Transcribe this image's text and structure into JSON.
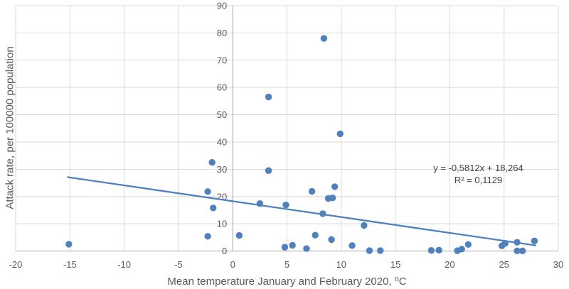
{
  "chart_data": {
    "type": "scatter",
    "title": "",
    "xlabel": "Mean temperature January and February 2020, ⁰C",
    "ylabel": "Attack rate, per 100000 population",
    "xlim": [
      -20,
      30
    ],
    "ylim": [
      0,
      90
    ],
    "x_ticks": [
      -20,
      -15,
      -10,
      -5,
      0,
      5,
      10,
      15,
      20,
      25,
      30
    ],
    "y_ticks": [
      0,
      10,
      20,
      30,
      40,
      50,
      60,
      70,
      80,
      90
    ],
    "grid": true,
    "legend": "none",
    "points": [
      [
        -15.1,
        2.5
      ],
      [
        -2.3,
        21.8
      ],
      [
        -2.3,
        5.4
      ],
      [
        -1.9,
        32.5
      ],
      [
        -1.8,
        15.8
      ],
      [
        0.6,
        5.7
      ],
      [
        2.5,
        17.4
      ],
      [
        3.3,
        56.5
      ],
      [
        3.3,
        29.5
      ],
      [
        4.9,
        16.9
      ],
      [
        4.8,
        1.4
      ],
      [
        5.5,
        2.1
      ],
      [
        6.8,
        0.9
      ],
      [
        7.3,
        21.9
      ],
      [
        7.6,
        5.8
      ],
      [
        8.3,
        13.7
      ],
      [
        8.4,
        78.0
      ],
      [
        8.8,
        19.3
      ],
      [
        9.2,
        19.5
      ],
      [
        9.4,
        23.6
      ],
      [
        9.1,
        4.2
      ],
      [
        9.9,
        43.0
      ],
      [
        11.0,
        2.0
      ],
      [
        12.1,
        9.4
      ],
      [
        12.6,
        0.15
      ],
      [
        13.6,
        0.15
      ],
      [
        18.3,
        0.2
      ],
      [
        19.0,
        0.3
      ],
      [
        20.7,
        0.1
      ],
      [
        21.1,
        0.7
      ],
      [
        21.7,
        2.4
      ],
      [
        24.8,
        1.9
      ],
      [
        25.1,
        2.8
      ],
      [
        26.2,
        3.2
      ],
      [
        26.2,
        0.05
      ],
      [
        26.7,
        0.05
      ],
      [
        27.8,
        3.7
      ]
    ],
    "trendline": {
      "slope": -0.5812,
      "intercept": 18.264,
      "x_start": -15.2,
      "x_end": 27.9,
      "equation_label": "y = -0,5812x + 18,264",
      "r_squared_label": "R² = 0,1129"
    },
    "colors": {
      "marker": "#4f81bd",
      "trendline": "#4f81bd",
      "gridline": "#d9d9d9",
      "axis_line": "#a6a6a6",
      "tick_text": "#595959",
      "axis_title_text": "#595959",
      "equation_text": "#404040"
    }
  }
}
